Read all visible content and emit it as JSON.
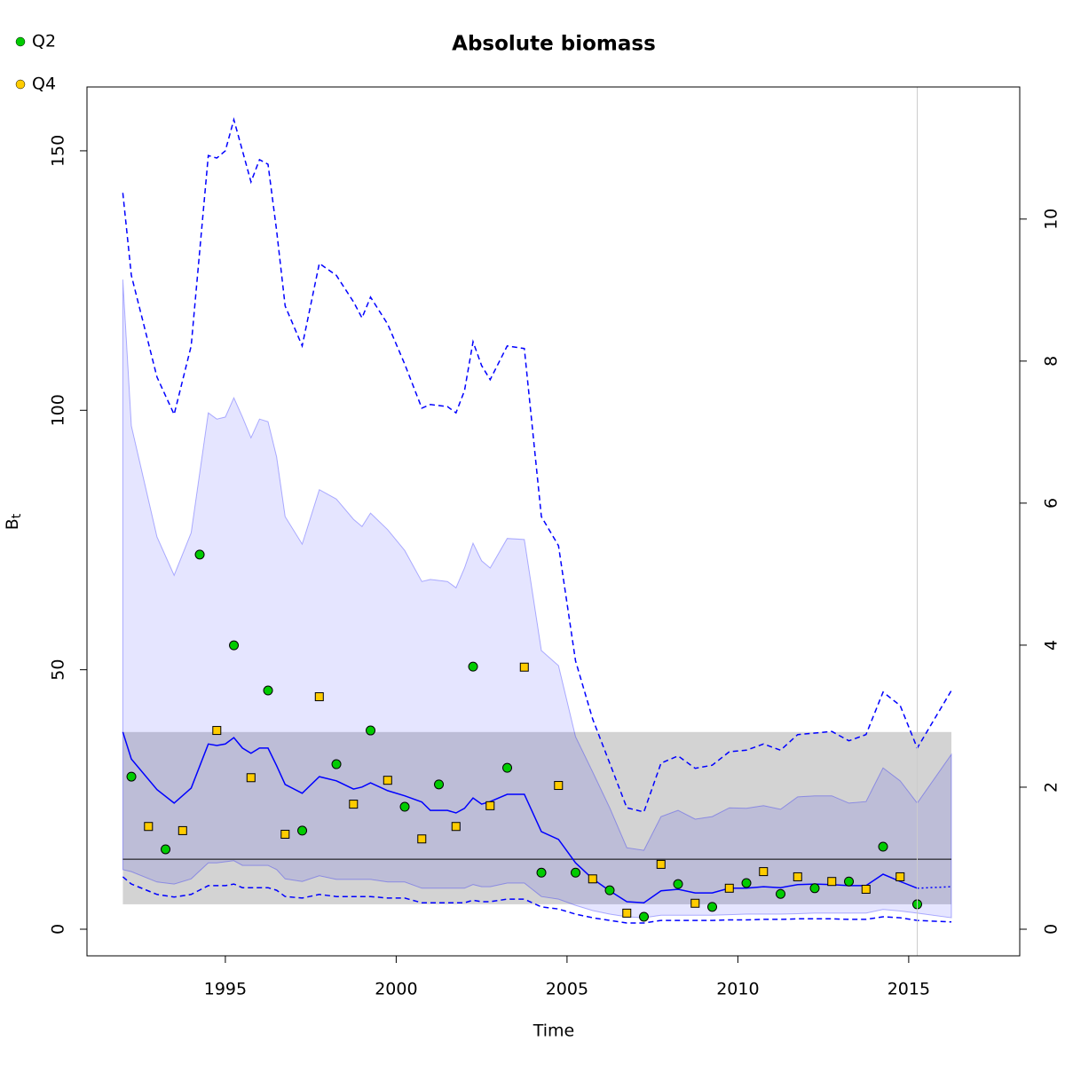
{
  "chart_data": {
    "type": "line",
    "title": "Absolute biomass",
    "xlabel": "Time",
    "ylabel": "B",
    "ylabel_subscript": "t",
    "xlim": [
      1990.95,
      2018.25
    ],
    "ylim": [
      -5.13,
      162.3
    ],
    "y2lim": [
      -0.375,
      11.86
    ],
    "xticks": [
      1995,
      2000,
      2005,
      2010,
      2015
    ],
    "yticks": [
      0,
      50,
      100,
      150
    ],
    "y2ticks": [
      0,
      2,
      4,
      6,
      8,
      10
    ],
    "projection_start": 2015.25,
    "x": [
      1992,
      1992.25,
      1993,
      1993.5,
      1994,
      1994.5,
      1994.75,
      1995,
      1995.25,
      1995.5,
      1995.75,
      1996,
      1996.25,
      1996.5,
      1996.75,
      1997.25,
      1997.75,
      1998.25,
      1998.75,
      1999,
      1999.25,
      1999.75,
      2000.25,
      2000.75,
      2001,
      2001.5,
      2001.75,
      2002,
      2002.25,
      2002.5,
      2002.75,
      2003.25,
      2003.75,
      2004.25,
      2004.75,
      2005.25,
      2005.75,
      2006.25,
      2006.75,
      2007.25,
      2007.75,
      2008.25,
      2008.75,
      2009.25,
      2009.75,
      2010.25,
      2010.75,
      2011.25,
      2011.75,
      2012.25,
      2012.75,
      2013.25,
      2013.75,
      2014.25,
      2014.75,
      2015.25,
      2016.25
    ],
    "median": {
      "color": "#0000ff",
      "values": [
        38.0,
        32.8,
        26.9,
        24.3,
        27.2,
        35.7,
        35.4,
        35.7,
        36.9,
        34.9,
        33.9,
        34.9,
        34.9,
        31.5,
        27.9,
        26.2,
        29.4,
        28.6,
        27.0,
        27.4,
        28.2,
        26.7,
        25.7,
        24.5,
        22.9,
        22.9,
        22.4,
        23.3,
        25.3,
        24.1,
        24.6,
        26.0,
        26.0,
        18.8,
        17.3,
        12.8,
        9.7,
        7.4,
        5.3,
        5.1,
        7.4,
        7.7,
        7.0,
        7.0,
        7.9,
        7.9,
        8.2,
        8.0,
        8.6,
        8.7,
        8.6,
        8.4,
        8.4,
        10.6,
        9.2,
        7.9,
        8.2
      ]
    },
    "ci_outer": {
      "color": "#0000ff",
      "upper": [
        141.9,
        126,
        106.4,
        99.2,
        112.4,
        149.1,
        148.6,
        150,
        156,
        150,
        144,
        148.3,
        147.4,
        134.6,
        120.1,
        112.4,
        128.3,
        126,
        120.9,
        117.8,
        121.8,
        116.6,
        108.9,
        100.4,
        101.1,
        100.7,
        99.5,
        103.8,
        113.2,
        108.6,
        105.9,
        112.4,
        111.9,
        79.5,
        73.9,
        51.7,
        40.5,
        32.0,
        23.4,
        22.6,
        32.0,
        33.4,
        31.0,
        31.6,
        34.2,
        34.5,
        35.7,
        34.5,
        37.5,
        37.8,
        38.1,
        36.3,
        37.5,
        45.7,
        43.1,
        34.9,
        46.0
      ],
      "lower": [
        10.1,
        8.7,
        6.7,
        6.2,
        6.7,
        8.4,
        8.4,
        8.4,
        8.7,
        8.0,
        8.0,
        8.0,
        8.0,
        7.5,
        6.3,
        6.0,
        6.7,
        6.3,
        6.3,
        6.3,
        6.3,
        6.0,
        6.0,
        5.1,
        5.1,
        5.1,
        5.1,
        5.1,
        5.6,
        5.3,
        5.3,
        5.8,
        5.8,
        4.3,
        3.9,
        2.9,
        2.2,
        1.7,
        1.2,
        1.2,
        1.7,
        1.7,
        1.7,
        1.7,
        1.8,
        1.8,
        1.9,
        1.9,
        2.0,
        2.0,
        2.0,
        1.9,
        1.9,
        2.4,
        2.2,
        1.7,
        1.4
      ]
    },
    "ci_inner": {
      "color": "#0000ff",
      "upper": [
        125.2,
        97.0,
        75.6,
        68.2,
        76.4,
        99.5,
        98.3,
        98.7,
        102.4,
        98.7,
        94.7,
        98.3,
        97.8,
        91.0,
        79.5,
        74.2,
        84.7,
        82.9,
        79.0,
        77.6,
        80.2,
        77.0,
        73.0,
        67.0,
        67.4,
        67.0,
        65.8,
        69.6,
        74.4,
        71.0,
        69.6,
        75.3,
        75.1,
        53.7,
        50.8,
        37.1,
        30.3,
        23.4,
        15.7,
        15.2,
        21.7,
        22.9,
        21.2,
        21.7,
        23.4,
        23.3,
        23.8,
        23.1,
        25.5,
        25.7,
        25.7,
        24.3,
        24.6,
        31.1,
        28.6,
        24.3,
        33.7
      ],
      "lower": [
        11.5,
        11.1,
        9.1,
        8.7,
        9.7,
        12.8,
        12.8,
        13.0,
        13.2,
        12.3,
        12.3,
        12.3,
        12.3,
        11.5,
        9.7,
        9.2,
        10.3,
        9.6,
        9.6,
        9.6,
        9.6,
        9.1,
        9.1,
        7.9,
        7.9,
        7.9,
        7.9,
        7.9,
        8.6,
        8.2,
        8.2,
        8.9,
        8.9,
        6.3,
        5.8,
        4.6,
        3.6,
        2.9,
        2.4,
        2.2,
        2.7,
        2.7,
        2.7,
        2.7,
        2.8,
        2.9,
        2.9,
        2.9,
        3.0,
        3.1,
        3.1,
        3.1,
        3.1,
        3.8,
        3.5,
        3.1,
        2.2
      ]
    },
    "reference": {
      "color": "#d3d3d3",
      "xlim": [
        1992,
        2016.25
      ],
      "lower": 4.8,
      "upper": 38.0,
      "level": 13.5
    },
    "points": [
      {
        "name": "Q2",
        "color": "#00cc00",
        "marker": "circle",
        "x": [
          1992.25,
          1993.25,
          1994.25,
          1995.25,
          1996.25,
          1997.25,
          1998.25,
          1999.25,
          2000.25,
          2001.25,
          2002.25,
          2003.25,
          2004.25,
          2005.25,
          2006.25,
          2007.25,
          2008.25,
          2009.25,
          2010.25,
          2011.25,
          2012.25,
          2013.25,
          2014.25,
          2015.25
        ],
        "values": [
          29.4,
          15.4,
          72.2,
          54.7,
          46.0,
          19.0,
          31.8,
          38.3,
          23.6,
          27.9,
          50.6,
          31.1,
          10.9,
          10.9,
          7.5,
          2.4,
          8.7,
          4.3,
          8.9,
          6.8,
          7.9,
          9.2,
          15.9,
          4.8
        ]
      },
      {
        "name": "Q4",
        "color": "#ffcc00",
        "marker": "square",
        "x": [
          1992.75,
          1993.75,
          1994.75,
          1995.75,
          1996.75,
          1997.75,
          1998.75,
          1999.75,
          2000.75,
          2001.75,
          2002.75,
          2003.75,
          2004.75,
          2005.75,
          2006.75,
          2007.75,
          2008.75,
          2009.75,
          2010.75,
          2011.75,
          2012.75,
          2013.75,
          2014.75
        ],
        "values": [
          19.8,
          19.0,
          38.3,
          29.2,
          18.3,
          44.8,
          24.1,
          28.7,
          17.4,
          19.8,
          23.8,
          50.5,
          27.7,
          9.7,
          3.1,
          12.5,
          5.0,
          7.9,
          11.1,
          10.1,
          9.2,
          7.7,
          10.1
        ]
      }
    ]
  }
}
